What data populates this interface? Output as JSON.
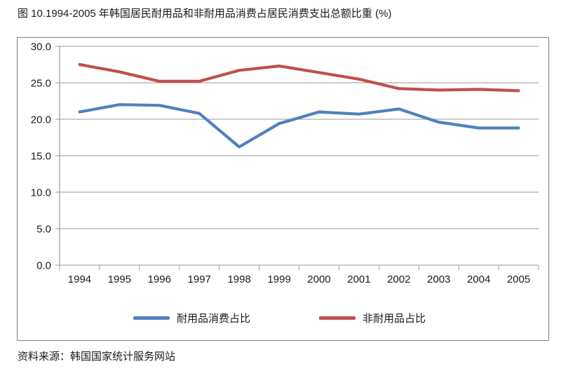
{
  "page": {
    "title": "图 10.1994-2005 年韩国居民耐用品和非耐用品消费占居民消费支出总额比重 (%)",
    "source": "资料来源：韩国国家统计服务网站"
  },
  "chart_data": {
    "type": "line",
    "title": "图 10.1994-2005 年韩国居民耐用品和非耐用品消费占居民消费支出总额比重 (%)",
    "x": [
      "1994",
      "1995",
      "1996",
      "1997",
      "1998",
      "1999",
      "2000",
      "2001",
      "2002",
      "2003",
      "2004",
      "2005"
    ],
    "series": [
      {
        "name": "耐用品消费占比",
        "color": "#4F81BD",
        "values": [
          21.0,
          22.0,
          21.9,
          20.8,
          16.2,
          19.4,
          21.0,
          20.7,
          21.4,
          19.6,
          18.8,
          18.8
        ]
      },
      {
        "name": "非耐用品占比",
        "color": "#C0504D",
        "values": [
          27.5,
          26.5,
          25.2,
          25.2,
          26.7,
          27.3,
          26.4,
          25.5,
          24.2,
          24.0,
          24.1,
          23.9
        ]
      }
    ],
    "ylim": [
      0,
      30
    ],
    "ytick_step": 5,
    "ytick_labels": [
      "0.0",
      "5.0",
      "10.0",
      "15.0",
      "20.0",
      "25.0",
      "30.0"
    ],
    "xlabel": "",
    "ylabel": "",
    "grid": true,
    "legend_position": "bottom",
    "colors": {
      "grid": "#9a9a9a",
      "axis": "#9a9a9a",
      "frame_border": "#808080",
      "text": "#1a1a1a"
    }
  }
}
